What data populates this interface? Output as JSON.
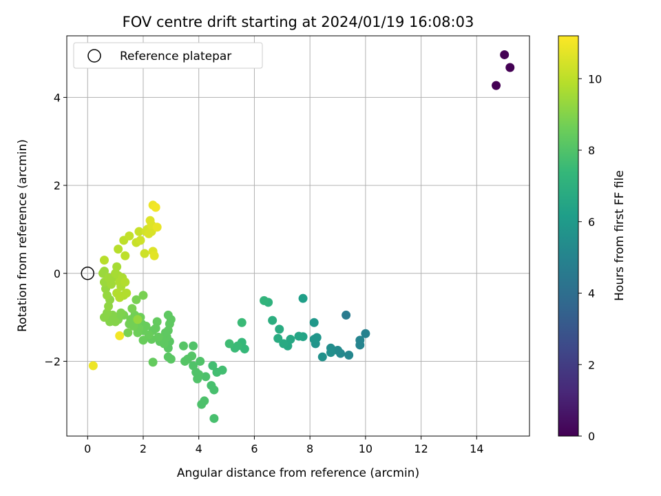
{
  "chart_data": {
    "type": "scatter",
    "title": "FOV centre drift starting at 2024/01/19 16:08:03",
    "xlabel": "Angular distance from reference (arcmin)",
    "ylabel": "Rotation from reference (arcmin)",
    "xlim": [
      -0.75,
      15.9
    ],
    "ylim": [
      -3.7,
      5.4
    ],
    "xticks": [
      "0",
      "2",
      "4",
      "6",
      "8",
      "10",
      "12",
      "14"
    ],
    "yticks": [
      "−2",
      "0",
      "2",
      "4"
    ],
    "grid": true,
    "legend": {
      "placement": "top-left",
      "entries": [
        "Reference platepar"
      ]
    },
    "reference_point": {
      "x": 0,
      "y": 0
    },
    "colorbar": {
      "label": "Hours from first FF file",
      "colormap": "viridis",
      "range": [
        0,
        11.2
      ],
      "ticks": [
        "0",
        "2",
        "4",
        "6",
        "8",
        "10"
      ]
    },
    "points": [
      {
        "x": 14.7,
        "y": 4.27,
        "t": 0.0
      },
      {
        "x": 15.0,
        "y": 4.97,
        "t": 0.0
      },
      {
        "x": 15.2,
        "y": 4.68,
        "t": 0.0
      },
      {
        "x": 9.3,
        "y": -0.95,
        "t": 4.6
      },
      {
        "x": 10.0,
        "y": -1.37,
        "t": 4.9
      },
      {
        "x": 9.8,
        "y": -1.52,
        "t": 5.0
      },
      {
        "x": 9.8,
        "y": -1.63,
        "t": 5.0
      },
      {
        "x": 9.4,
        "y": -1.86,
        "t": 5.1
      },
      {
        "x": 9.1,
        "y": -1.82,
        "t": 5.2
      },
      {
        "x": 9.0,
        "y": -1.75,
        "t": 5.3
      },
      {
        "x": 8.75,
        "y": -1.7,
        "t": 5.4
      },
      {
        "x": 8.75,
        "y": -1.8,
        "t": 5.5
      },
      {
        "x": 8.45,
        "y": -1.9,
        "t": 5.6
      },
      {
        "x": 8.2,
        "y": -1.6,
        "t": 5.7
      },
      {
        "x": 8.25,
        "y": -1.46,
        "t": 5.8
      },
      {
        "x": 8.15,
        "y": -1.5,
        "t": 5.8
      },
      {
        "x": 8.15,
        "y": -1.12,
        "t": 5.9
      },
      {
        "x": 7.75,
        "y": -0.57,
        "t": 6.2
      },
      {
        "x": 7.75,
        "y": -1.44,
        "t": 6.4
      },
      {
        "x": 7.6,
        "y": -1.43,
        "t": 6.5
      },
      {
        "x": 7.3,
        "y": -1.5,
        "t": 6.6
      },
      {
        "x": 7.2,
        "y": -1.65,
        "t": 6.6
      },
      {
        "x": 7.05,
        "y": -1.6,
        "t": 6.7
      },
      {
        "x": 6.85,
        "y": -1.48,
        "t": 6.8
      },
      {
        "x": 6.9,
        "y": -1.27,
        "t": 6.8
      },
      {
        "x": 6.65,
        "y": -1.07,
        "t": 6.9
      },
      {
        "x": 6.5,
        "y": -0.66,
        "t": 7.1
      },
      {
        "x": 6.35,
        "y": -0.62,
        "t": 7.2
      },
      {
        "x": 5.65,
        "y": -1.72,
        "t": 7.4
      },
      {
        "x": 5.55,
        "y": -1.57,
        "t": 7.4
      },
      {
        "x": 5.55,
        "y": -1.12,
        "t": 7.5
      },
      {
        "x": 5.4,
        "y": -1.65,
        "t": 7.5
      },
      {
        "x": 5.3,
        "y": -1.7,
        "t": 7.5
      },
      {
        "x": 5.1,
        "y": -1.6,
        "t": 7.6
      },
      {
        "x": 4.85,
        "y": -2.2,
        "t": 7.7
      },
      {
        "x": 4.65,
        "y": -2.25,
        "t": 7.7
      },
      {
        "x": 4.5,
        "y": -2.1,
        "t": 7.7
      },
      {
        "x": 4.55,
        "y": -2.65,
        "t": 7.8
      },
      {
        "x": 4.45,
        "y": -2.55,
        "t": 7.8
      },
      {
        "x": 4.55,
        "y": -3.3,
        "t": 7.8
      },
      {
        "x": 4.25,
        "y": -2.35,
        "t": 7.9
      },
      {
        "x": 4.2,
        "y": -2.9,
        "t": 7.9
      },
      {
        "x": 4.1,
        "y": -2.98,
        "t": 7.9
      },
      {
        "x": 4.05,
        "y": -2.0,
        "t": 8.0
      },
      {
        "x": 4.0,
        "y": -2.3,
        "t": 8.0
      },
      {
        "x": 3.95,
        "y": -2.4,
        "t": 8.0
      },
      {
        "x": 3.9,
        "y": -2.25,
        "t": 8.0
      },
      {
        "x": 3.8,
        "y": -1.65,
        "t": 8.0
      },
      {
        "x": 3.8,
        "y": -2.1,
        "t": 8.0
      },
      {
        "x": 3.75,
        "y": -1.88,
        "t": 8.1
      },
      {
        "x": 3.6,
        "y": -1.95,
        "t": 8.1
      },
      {
        "x": 3.5,
        "y": -2.0,
        "t": 8.1
      },
      {
        "x": 3.45,
        "y": -1.65,
        "t": 8.1
      },
      {
        "x": 3.0,
        "y": -1.95,
        "t": 8.2
      },
      {
        "x": 2.9,
        "y": -1.9,
        "t": 8.2
      },
      {
        "x": 2.9,
        "y": -1.7,
        "t": 8.2
      },
      {
        "x": 2.95,
        "y": -1.55,
        "t": 8.2
      },
      {
        "x": 2.85,
        "y": -1.45,
        "t": 8.3
      },
      {
        "x": 2.9,
        "y": -1.3,
        "t": 8.3
      },
      {
        "x": 2.8,
        "y": -1.35,
        "t": 8.3
      },
      {
        "x": 2.75,
        "y": -1.6,
        "t": 8.3
      },
      {
        "x": 2.7,
        "y": -1.5,
        "t": 8.3
      },
      {
        "x": 2.6,
        "y": -1.55,
        "t": 8.3
      },
      {
        "x": 2.55,
        "y": -1.45,
        "t": 8.4
      },
      {
        "x": 2.45,
        "y": -1.25,
        "t": 8.4
      },
      {
        "x": 2.35,
        "y": -1.3,
        "t": 8.4
      },
      {
        "x": 2.3,
        "y": -1.5,
        "t": 8.4
      },
      {
        "x": 2.35,
        "y": -2.02,
        "t": 8.4
      },
      {
        "x": 2.2,
        "y": -1.4,
        "t": 8.5
      },
      {
        "x": 2.1,
        "y": -1.2,
        "t": 8.5
      },
      {
        "x": 2.0,
        "y": -1.3,
        "t": 8.5
      },
      {
        "x": 2.0,
        "y": -1.52,
        "t": 8.5
      },
      {
        "x": 1.95,
        "y": -1.15,
        "t": 8.5
      },
      {
        "x": 1.9,
        "y": -1.0,
        "t": 8.6
      },
      {
        "x": 1.85,
        "y": -1.25,
        "t": 8.6
      },
      {
        "x": 1.8,
        "y": -1.35,
        "t": 8.6
      },
      {
        "x": 1.75,
        "y": -1.1,
        "t": 8.6
      },
      {
        "x": 1.7,
        "y": -0.95,
        "t": 8.7
      },
      {
        "x": 1.65,
        "y": -1.2,
        "t": 8.7
      },
      {
        "x": 1.55,
        "y": -1.05,
        "t": 8.7
      },
      {
        "x": 1.5,
        "y": -1.15,
        "t": 8.7
      },
      {
        "x": 1.45,
        "y": -1.35,
        "t": 8.8
      },
      {
        "x": 1.6,
        "y": -0.8,
        "t": 8.8
      },
      {
        "x": 1.75,
        "y": -0.6,
        "t": 8.8
      },
      {
        "x": 2.0,
        "y": -0.5,
        "t": 8.8
      },
      {
        "x": 2.9,
        "y": -0.95,
        "t": 8.3
      },
      {
        "x": 3.0,
        "y": -1.05,
        "t": 8.3
      },
      {
        "x": 2.95,
        "y": -1.15,
        "t": 8.3
      },
      {
        "x": 2.5,
        "y": -1.1,
        "t": 8.4
      },
      {
        "x": 1.3,
        "y": -0.95,
        "t": 8.8
      },
      {
        "x": 1.2,
        "y": -0.9,
        "t": 8.9
      },
      {
        "x": 1.1,
        "y": -1.05,
        "t": 8.9
      },
      {
        "x": 1.0,
        "y": -1.1,
        "t": 9.0
      },
      {
        "x": 0.9,
        "y": -0.95,
        "t": 9.0
      },
      {
        "x": 0.8,
        "y": -1.1,
        "t": 9.0
      },
      {
        "x": 0.7,
        "y": -0.9,
        "t": 9.1
      },
      {
        "x": 0.6,
        "y": -1.0,
        "t": 9.1
      },
      {
        "x": 0.75,
        "y": -0.75,
        "t": 9.2
      },
      {
        "x": 0.8,
        "y": -0.6,
        "t": 9.2
      },
      {
        "x": 0.7,
        "y": -0.5,
        "t": 9.3
      },
      {
        "x": 0.65,
        "y": -0.35,
        "t": 9.3
      },
      {
        "x": 0.6,
        "y": -0.2,
        "t": 9.4
      },
      {
        "x": 0.55,
        "y": 0.0,
        "t": 9.4
      },
      {
        "x": 0.6,
        "y": 0.05,
        "t": 9.4
      },
      {
        "x": 0.75,
        "y": -0.1,
        "t": 9.5
      },
      {
        "x": 0.85,
        "y": -0.25,
        "t": 9.5
      },
      {
        "x": 0.9,
        "y": -0.1,
        "t": 9.5
      },
      {
        "x": 1.0,
        "y": 0.0,
        "t": 9.6
      },
      {
        "x": 1.05,
        "y": 0.15,
        "t": 9.6
      },
      {
        "x": 1.1,
        "y": -0.05,
        "t": 9.6
      },
      {
        "x": 1.15,
        "y": -0.2,
        "t": 9.7
      },
      {
        "x": 1.2,
        "y": -0.3,
        "t": 9.7
      },
      {
        "x": 1.25,
        "y": -0.1,
        "t": 9.7
      },
      {
        "x": 1.3,
        "y": -0.5,
        "t": 9.7
      },
      {
        "x": 1.35,
        "y": -0.2,
        "t": 9.8
      },
      {
        "x": 1.4,
        "y": -0.45,
        "t": 9.8
      },
      {
        "x": 1.15,
        "y": -0.55,
        "t": 9.8
      },
      {
        "x": 1.05,
        "y": -0.45,
        "t": 9.8
      },
      {
        "x": 0.6,
        "y": 0.3,
        "t": 9.9
      },
      {
        "x": 1.1,
        "y": 0.55,
        "t": 9.9
      },
      {
        "x": 1.3,
        "y": 0.75,
        "t": 10.0
      },
      {
        "x": 1.35,
        "y": 0.4,
        "t": 10.0
      },
      {
        "x": 1.5,
        "y": 0.85,
        "t": 10.1
      },
      {
        "x": 1.75,
        "y": 0.7,
        "t": 10.2
      },
      {
        "x": 1.85,
        "y": 0.95,
        "t": 10.2
      },
      {
        "x": 1.9,
        "y": 0.75,
        "t": 10.3
      },
      {
        "x": 2.05,
        "y": 0.45,
        "t": 10.3
      },
      {
        "x": 2.1,
        "y": 0.95,
        "t": 10.4
      },
      {
        "x": 2.15,
        "y": 1.0,
        "t": 10.4
      },
      {
        "x": 2.2,
        "y": 0.9,
        "t": 10.5
      },
      {
        "x": 2.3,
        "y": 0.95,
        "t": 10.5
      },
      {
        "x": 2.3,
        "y": 1.1,
        "t": 10.6
      },
      {
        "x": 2.25,
        "y": 1.2,
        "t": 10.6
      },
      {
        "x": 2.35,
        "y": 0.5,
        "t": 10.6
      },
      {
        "x": 2.4,
        "y": 0.4,
        "t": 10.7
      },
      {
        "x": 2.5,
        "y": 1.05,
        "t": 10.8
      },
      {
        "x": 2.35,
        "y": 1.55,
        "t": 10.9
      },
      {
        "x": 2.45,
        "y": 1.5,
        "t": 11.0
      },
      {
        "x": 0.2,
        "y": -2.1,
        "t": 10.9
      },
      {
        "x": 1.15,
        "y": -1.42,
        "t": 11.0
      },
      {
        "x": 1.8,
        "y": -1.05,
        "t": 9.3
      }
    ]
  }
}
